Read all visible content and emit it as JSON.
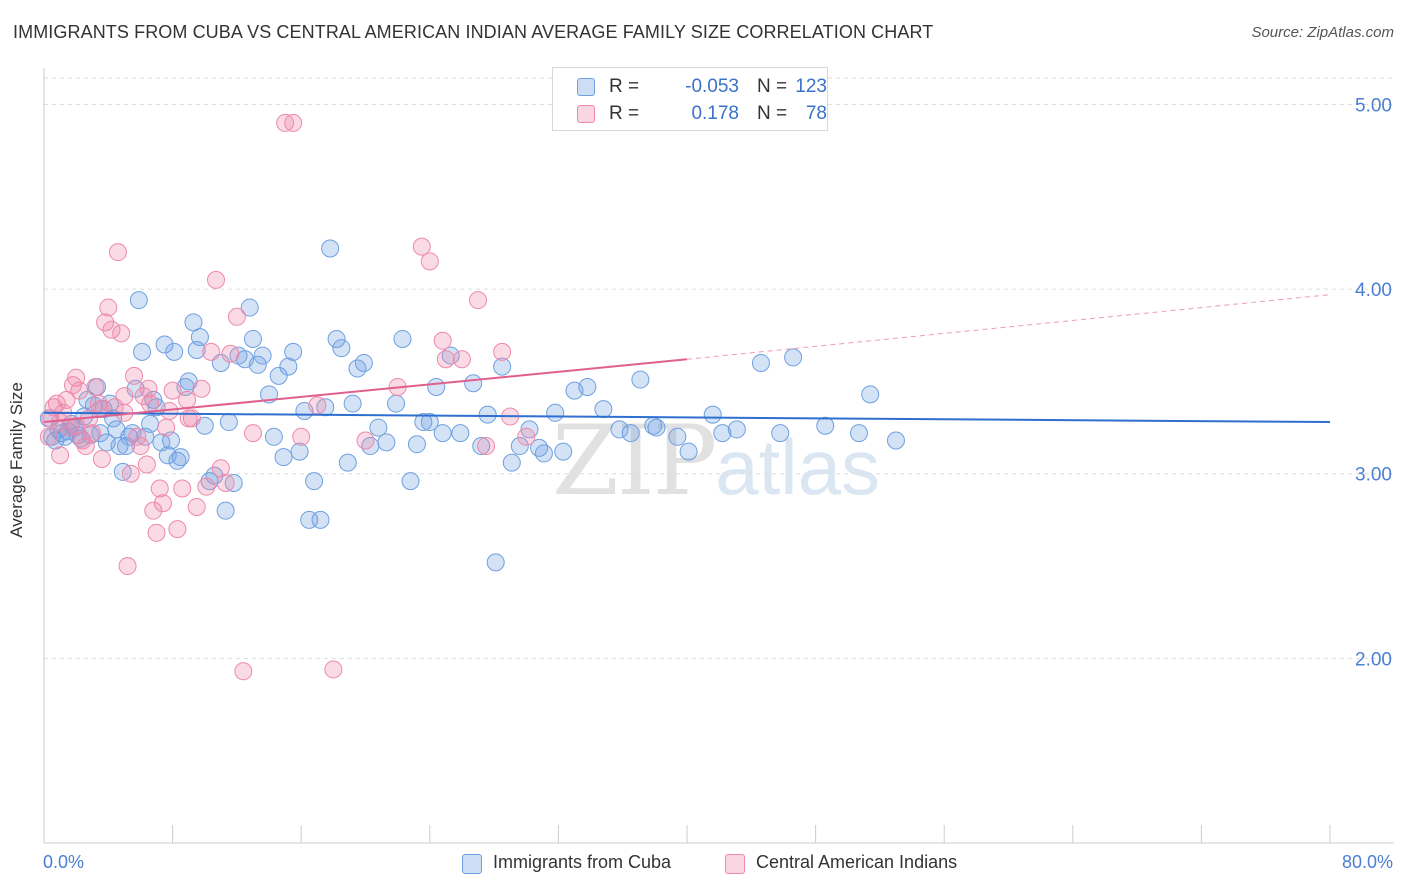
{
  "title": "IMMIGRANTS FROM CUBA VS CENTRAL AMERICAN INDIAN AVERAGE FAMILY SIZE CORRELATION CHART",
  "source": "Source: ZipAtlas.com",
  "watermark": {
    "zip": "ZIP",
    "atlas": "atlas"
  },
  "legend": [
    {
      "r_label": "R =",
      "r_value": "-0.053",
      "n_label": "N =",
      "n_value": "123",
      "color": "#6fa0e0"
    },
    {
      "r_label": "R =",
      "r_value": "0.178",
      "n_label": "N =",
      "n_value": "78",
      "color": "#ee89aa"
    }
  ],
  "bottom_legend": [
    {
      "label": "Immigrants from Cuba",
      "color": "#6fa0e0"
    },
    {
      "label": "Central American Indians",
      "color": "#ee89aa"
    }
  ],
  "chart_data": {
    "type": "scatter",
    "title": "IMMIGRANTS FROM CUBA VS CENTRAL AMERICAN INDIAN AVERAGE FAMILY SIZE CORRELATION CHART",
    "xlabel": "",
    "ylabel": "Average Family Size",
    "x_tick_labels": [
      "0.0%",
      "80.0%"
    ],
    "y_tick_labels": [
      "2.00",
      "3.00",
      "4.00",
      "5.00"
    ],
    "xlim": [
      0,
      80
    ],
    "ylim": [
      1.0,
      5.1
    ],
    "grid": true,
    "series": [
      {
        "name": "Immigrants from Cuba",
        "color": "#6fa0e0",
        "trend": {
          "x0": 0,
          "y0": 3.33,
          "x1": 80,
          "y1": 3.28
        },
        "points": [
          [
            0.3,
            3.3
          ],
          [
            0.5,
            3.2
          ],
          [
            0.7,
            3.18
          ],
          [
            0.9,
            3.24
          ],
          [
            1.1,
            3.22
          ],
          [
            1.3,
            3.2
          ],
          [
            1.5,
            3.23
          ],
          [
            1.7,
            3.27
          ],
          [
            1.9,
            3.25
          ],
          [
            2.1,
            3.21
          ],
          [
            2.3,
            3.19
          ],
          [
            2.5,
            3.31
          ],
          [
            2.7,
            3.4
          ],
          [
            2.9,
            3.21
          ],
          [
            3.1,
            3.37
          ],
          [
            3.3,
            3.47
          ],
          [
            3.5,
            3.22
          ],
          [
            3.7,
            3.35
          ],
          [
            3.9,
            3.17
          ],
          [
            4.1,
            3.38
          ],
          [
            4.3,
            3.3
          ],
          [
            4.5,
            3.24
          ],
          [
            4.7,
            3.15
          ],
          [
            4.9,
            3.01
          ],
          [
            5.1,
            3.15
          ],
          [
            5.3,
            3.2
          ],
          [
            5.5,
            3.22
          ],
          [
            5.7,
            3.46
          ],
          [
            5.9,
            3.94
          ],
          [
            6.1,
            3.66
          ],
          [
            6.3,
            3.2
          ],
          [
            6.6,
            3.27
          ],
          [
            6.8,
            3.4
          ],
          [
            7.0,
            3.36
          ],
          [
            7.3,
            3.17
          ],
          [
            7.5,
            3.7
          ],
          [
            7.7,
            3.1
          ],
          [
            7.9,
            3.18
          ],
          [
            8.1,
            3.66
          ],
          [
            8.3,
            3.07
          ],
          [
            8.5,
            3.09
          ],
          [
            8.8,
            3.47
          ],
          [
            9.0,
            3.5
          ],
          [
            9.3,
            3.82
          ],
          [
            9.5,
            3.67
          ],
          [
            9.7,
            3.74
          ],
          [
            10.0,
            3.26
          ],
          [
            10.3,
            2.96
          ],
          [
            10.6,
            2.99
          ],
          [
            11.0,
            3.6
          ],
          [
            11.3,
            2.8
          ],
          [
            11.5,
            3.28
          ],
          [
            11.8,
            2.95
          ],
          [
            12.1,
            3.64
          ],
          [
            12.5,
            3.62
          ],
          [
            12.8,
            3.9
          ],
          [
            13.0,
            3.73
          ],
          [
            13.3,
            3.59
          ],
          [
            13.6,
            3.64
          ],
          [
            14.0,
            3.43
          ],
          [
            14.3,
            3.2
          ],
          [
            14.6,
            3.53
          ],
          [
            14.9,
            3.09
          ],
          [
            15.2,
            3.58
          ],
          [
            15.5,
            3.66
          ],
          [
            15.9,
            3.12
          ],
          [
            16.2,
            3.34
          ],
          [
            16.5,
            2.75
          ],
          [
            16.8,
            2.96
          ],
          [
            17.2,
            2.75
          ],
          [
            17.5,
            3.36
          ],
          [
            17.8,
            4.22
          ],
          [
            18.2,
            3.73
          ],
          [
            18.5,
            3.68
          ],
          [
            18.9,
            3.06
          ],
          [
            19.2,
            3.38
          ],
          [
            19.5,
            3.57
          ],
          [
            19.9,
            3.6
          ],
          [
            20.3,
            3.15
          ],
          [
            20.8,
            3.25
          ],
          [
            21.3,
            3.17
          ],
          [
            21.9,
            3.38
          ],
          [
            22.3,
            3.73
          ],
          [
            22.8,
            2.96
          ],
          [
            23.2,
            3.16
          ],
          [
            23.6,
            3.28
          ],
          [
            24.0,
            3.28
          ],
          [
            24.4,
            3.47
          ],
          [
            24.8,
            3.22
          ],
          [
            25.3,
            3.64
          ],
          [
            25.9,
            3.22
          ],
          [
            26.7,
            3.49
          ],
          [
            27.2,
            3.15
          ],
          [
            27.6,
            3.32
          ],
          [
            28.1,
            2.52
          ],
          [
            28.5,
            3.58
          ],
          [
            29.1,
            3.06
          ],
          [
            29.6,
            3.15
          ],
          [
            30.2,
            3.24
          ],
          [
            30.8,
            3.14
          ],
          [
            31.1,
            3.11
          ],
          [
            31.8,
            3.33
          ],
          [
            32.3,
            3.12
          ],
          [
            33.0,
            3.45
          ],
          [
            33.8,
            3.47
          ],
          [
            34.8,
            3.35
          ],
          [
            35.8,
            3.24
          ],
          [
            36.5,
            3.22
          ],
          [
            37.1,
            3.51
          ],
          [
            37.9,
            3.26
          ],
          [
            38.1,
            3.25
          ],
          [
            39.4,
            3.2
          ],
          [
            40.1,
            3.12
          ],
          [
            41.6,
            3.32
          ],
          [
            42.2,
            3.22
          ],
          [
            43.1,
            3.24
          ],
          [
            44.6,
            3.6
          ],
          [
            45.8,
            3.22
          ],
          [
            46.6,
            3.63
          ],
          [
            48.6,
            3.26
          ],
          [
            50.7,
            3.22
          ],
          [
            51.4,
            3.43
          ],
          [
            53.0,
            3.18
          ]
        ]
      },
      {
        "name": "Central American Indians",
        "color": "#ee89aa",
        "trend": {
          "x0": 0,
          "y0": 3.28,
          "x1": 40,
          "y1": 3.62,
          "dash_x1": 80,
          "dash_y1": 3.97
        },
        "points": [
          [
            0.3,
            3.2
          ],
          [
            0.4,
            3.3
          ],
          [
            0.6,
            3.36
          ],
          [
            0.8,
            3.38
          ],
          [
            1.0,
            3.28
          ],
          [
            1.2,
            3.33
          ],
          [
            1.4,
            3.4
          ],
          [
            1.6,
            3.25
          ],
          [
            1.8,
            3.48
          ],
          [
            2.0,
            3.52
          ],
          [
            2.2,
            3.45
          ],
          [
            2.4,
            3.18
          ],
          [
            2.6,
            3.15
          ],
          [
            2.8,
            3.3
          ],
          [
            3.0,
            3.22
          ],
          [
            3.2,
            3.47
          ],
          [
            3.4,
            3.38
          ],
          [
            3.6,
            3.08
          ],
          [
            3.8,
            3.82
          ],
          [
            4.0,
            3.9
          ],
          [
            4.2,
            3.78
          ],
          [
            4.4,
            3.36
          ],
          [
            4.6,
            4.2
          ],
          [
            4.8,
            3.76
          ],
          [
            5.0,
            3.42
          ],
          [
            5.2,
            2.5
          ],
          [
            5.4,
            3.0
          ],
          [
            5.6,
            3.53
          ],
          [
            5.8,
            3.2
          ],
          [
            6.0,
            3.15
          ],
          [
            6.2,
            3.42
          ],
          [
            6.4,
            3.05
          ],
          [
            6.6,
            3.38
          ],
          [
            6.8,
            2.8
          ],
          [
            7.0,
            2.68
          ],
          [
            7.2,
            2.92
          ],
          [
            7.4,
            2.84
          ],
          [
            7.6,
            3.25
          ],
          [
            7.8,
            3.34
          ],
          [
            8.0,
            3.45
          ],
          [
            8.3,
            2.7
          ],
          [
            8.6,
            2.92
          ],
          [
            8.9,
            3.4
          ],
          [
            9.2,
            3.3
          ],
          [
            9.5,
            2.82
          ],
          [
            9.8,
            3.46
          ],
          [
            10.1,
            2.93
          ],
          [
            10.4,
            3.66
          ],
          [
            10.7,
            4.05
          ],
          [
            11.0,
            3.03
          ],
          [
            11.3,
            2.95
          ],
          [
            11.6,
            3.65
          ],
          [
            12.0,
            3.85
          ],
          [
            12.4,
            1.93
          ],
          [
            13.0,
            3.22
          ],
          [
            15.0,
            4.9
          ],
          [
            15.5,
            4.9
          ],
          [
            16.0,
            3.2
          ],
          [
            17.0,
            3.37
          ],
          [
            18.0,
            1.94
          ],
          [
            20.0,
            3.18
          ],
          [
            22.0,
            3.47
          ],
          [
            23.5,
            4.23
          ],
          [
            24.0,
            4.15
          ],
          [
            24.8,
            3.72
          ],
          [
            25.0,
            3.62
          ],
          [
            26.0,
            3.62
          ],
          [
            27.0,
            3.94
          ],
          [
            27.5,
            3.15
          ],
          [
            28.5,
            3.66
          ],
          [
            29.0,
            3.31
          ],
          [
            30.0,
            3.2
          ],
          [
            1.0,
            3.1
          ],
          [
            2.0,
            3.26
          ],
          [
            3.5,
            3.35
          ],
          [
            5.0,
            3.33
          ],
          [
            6.5,
            3.46
          ],
          [
            9.0,
            3.3
          ]
        ]
      }
    ]
  }
}
